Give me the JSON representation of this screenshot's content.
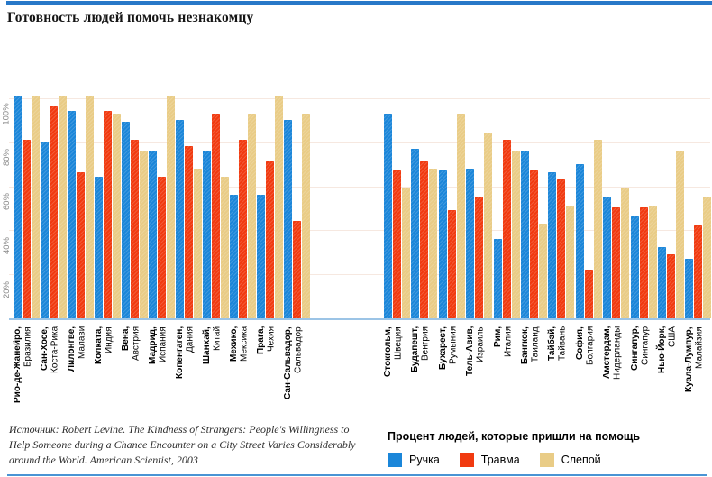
{
  "title": "Готовность людей помочь незнакомцу",
  "source": {
    "line1": "Источник: Robert Levine. The Kindness of Strangers: People's Willingness to",
    "line2": "Help Someone during a Chance Encounter on a City Street Varies Considerably",
    "line3": "around the World. American Scientist, 2003"
  },
  "legend": {
    "title": "Процент людей, которые пришли на помощь"
  },
  "colors": {
    "pen_blue": "#1b86d9",
    "injury_red": "#f13a10",
    "blind_tan": "#e9cc86",
    "top_rule": "#2878c8",
    "bottom_rule": "#4a94d4",
    "axis_line": "#9cc4e6",
    "gridline": "#f6e8e0"
  },
  "chart_data": {
    "type": "bar",
    "title": "Готовность людей помочь незнакомцу",
    "ylabel": "Процент людей, которые пришли на помощь",
    "ylim": [
      0,
      100
    ],
    "grid": true,
    "legend_position": "bottom-right",
    "yticks": [
      {
        "label": "20%",
        "value": 20
      },
      {
        "label": "40%",
        "value": 40
      },
      {
        "label": "60%",
        "value": 60
      },
      {
        "label": "80%",
        "value": 80
      },
      {
        "label": "100%",
        "value": 100
      }
    ],
    "series": [
      {
        "name": "Ручка",
        "color": "#1b86d9"
      },
      {
        "name": "Травма",
        "color": "#f13a10"
      },
      {
        "name": "Слепой",
        "color": "#e9cc86"
      }
    ],
    "clusters": [
      {
        "groups": [
          {
            "city": "Рио-де-Жанейро,",
            "country": "Бразилия",
            "values": [
              100,
              80,
              100
            ]
          },
          {
            "city": "Сан-Хосе,",
            "country": "Коста-Рика",
            "values": [
              79,
              95,
              100
            ]
          },
          {
            "city": "Лилонгве,",
            "country": "Малави",
            "values": [
              93,
              65,
              100
            ]
          },
          {
            "city": "Колката,",
            "country": "Индия",
            "values": [
              63,
              93,
              92
            ]
          },
          {
            "city": "Вена,",
            "country": "Австрия",
            "values": [
              88,
              80,
              75
            ]
          },
          {
            "city": "Мадрид,",
            "country": "Испания",
            "values": [
              75,
              63,
              100
            ]
          },
          {
            "city": "Копенгаген,",
            "country": "Дания",
            "values": [
              89,
              77,
              67
            ]
          },
          {
            "city": "Шанхай,",
            "country": "Китай",
            "values": [
              75,
              92,
              63
            ]
          },
          {
            "city": "Мехико,",
            "country": "Мексика",
            "values": [
              55,
              80,
              92
            ]
          },
          {
            "city": "Прага,",
            "country": "Чехия",
            "values": [
              55,
              70,
              100
            ]
          },
          {
            "city": "Сан-Сальвадор,",
            "country": "Сальвадор",
            "values": [
              89,
              43,
              92
            ]
          }
        ]
      },
      {
        "groups": [
          {
            "city": "Стокгольм,",
            "country": "Швеция",
            "values": [
              92,
              66,
              58
            ]
          },
          {
            "city": "Будапешт,",
            "country": "Венгрия",
            "values": [
              76,
              70,
              67
            ]
          },
          {
            "city": "Бухарест,",
            "country": "Румыния",
            "values": [
              66,
              48,
              92
            ]
          },
          {
            "city": "Тель-Авив,",
            "country": "Израиль",
            "values": [
              67,
              54,
              83
            ]
          },
          {
            "city": "Рим,",
            "country": "Италия",
            "values": [
              35,
              80,
              75
            ]
          },
          {
            "city": "Бангкок,",
            "country": "Таиланд",
            "values": [
              75,
              66,
              42
            ]
          },
          {
            "city": "Тайбэй,",
            "country": "Тайвань",
            "values": [
              65,
              62,
              50
            ]
          },
          {
            "city": "София,",
            "country": "Болгария",
            "values": [
              69,
              21,
              80
            ]
          },
          {
            "city": "Амстердам,",
            "country": "Нидерланды",
            "values": [
              54,
              49,
              58
            ]
          },
          {
            "city": "Сингапур,",
            "country": "Сингапур",
            "values": [
              45,
              49,
              50
            ]
          },
          {
            "city": "Нью-Йорк,",
            "country": "США",
            "values": [
              31,
              28,
              75
            ]
          },
          {
            "city": "Куала-Лумпур,",
            "country": "Малайзия",
            "values": [
              26,
              41,
              54
            ]
          }
        ]
      }
    ]
  }
}
